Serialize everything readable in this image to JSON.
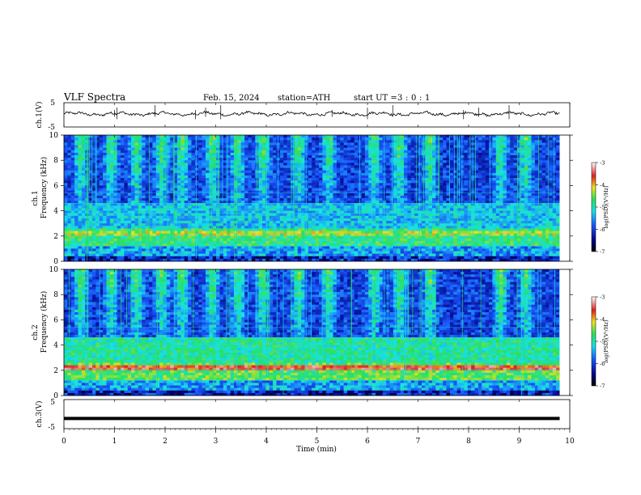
{
  "header": {
    "title": "VLF Spectra",
    "date": "Feb. 15, 2024",
    "station": "station=ATH",
    "start_label": "start UT =",
    "start_hour": "3",
    "start_min": "0",
    "start_sec": "1",
    "sep": ":"
  },
  "chart_data": [
    {
      "type": "line",
      "name_label": "ch.1(V)",
      "ylabel": "ch.1(V)",
      "ylim": [
        -5,
        5
      ],
      "yticks": [
        "5",
        "-5"
      ],
      "xlim": [
        0,
        10
      ],
      "baseline": 0.4,
      "color": "#000000",
      "note_values": "noisy waveform near 0 V with occasional spikes"
    },
    {
      "type": "heatmap",
      "ylabel_channel": "ch.1",
      "ylabel": "Frequency (kHz)",
      "ylim": [
        0,
        10
      ],
      "yticks": [
        "0",
        "2",
        "4",
        "6",
        "8",
        "10"
      ],
      "xlim": [
        0,
        10
      ],
      "colorbar": {
        "label": "log(PSD)(V²/Hz)",
        "range": [
          -7,
          -3
        ],
        "ticks": [
          "-3",
          "-4",
          "-5",
          "-6",
          "-7"
        ]
      }
    },
    {
      "type": "heatmap",
      "ylabel_channel": "ch.2",
      "ylabel": "Frequency (kHz)",
      "ylim": [
        0,
        10
      ],
      "yticks": [
        "0",
        "2",
        "4",
        "6",
        "8",
        "10"
      ],
      "xlim": [
        0,
        10
      ],
      "colorbar": {
        "label": "log(PSD)(V²/Hz)",
        "range": [
          -7,
          -3
        ],
        "ticks": [
          "-3",
          "-4",
          "-5",
          "-6",
          "-7"
        ]
      }
    },
    {
      "type": "line",
      "ylabel": "ch.3(V)",
      "ylim": [
        -5,
        5
      ],
      "yticks": [
        "5",
        "-5"
      ],
      "xlim": [
        0,
        10
      ],
      "baseline": -1.5,
      "color": "#000000"
    }
  ],
  "xaxis": {
    "label": "Time (min)",
    "range": [
      0,
      10
    ],
    "ticks": [
      "0",
      "1",
      "2",
      "3",
      "4",
      "5",
      "6",
      "7",
      "8",
      "9",
      "10"
    ]
  },
  "colors": {
    "background": "#000033",
    "deep_blue": "#0a1a9a",
    "blue": "#1a5aff",
    "cyan": "#19e0e6",
    "green": "#27e060",
    "yellow": "#f0e020",
    "red": "#e02020"
  }
}
